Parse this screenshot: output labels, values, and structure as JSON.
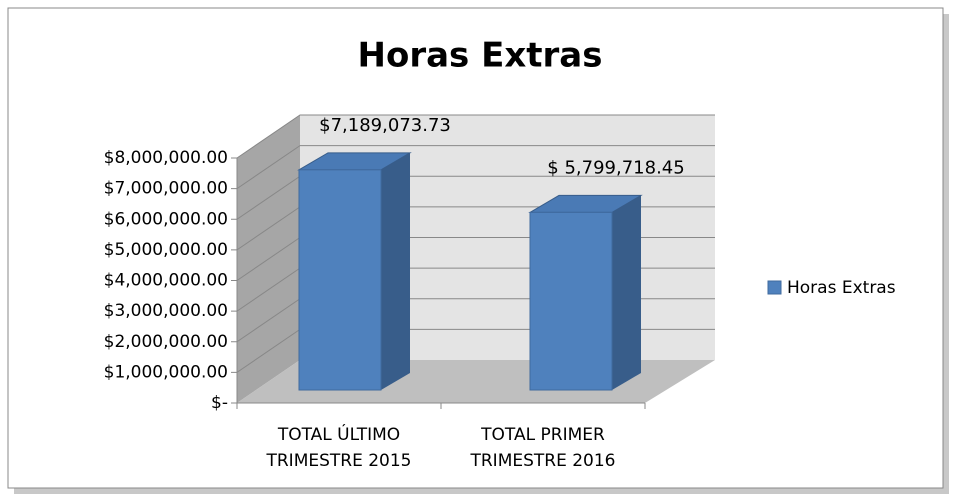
{
  "chart_data": {
    "type": "bar3d",
    "title": "Horas Extras",
    "categories": [
      "TOTAL ÚLTIMO TRIMESTRE 2015",
      "TOTAL PRIMER TRIMESTRE 2016"
    ],
    "series": [
      {
        "name": "Horas Extras",
        "color": "#4f81bd",
        "values": [
          7189073.73,
          5799718.45
        ],
        "value_labels": [
          "$7,189,073.73",
          "$ 5,799,718.45"
        ]
      }
    ],
    "ylim": [
      0,
      8000000
    ],
    "yticks": [
      {
        "value": 0,
        "label": "$-"
      },
      {
        "value": 1000000,
        "label": "$1,000,000.00"
      },
      {
        "value": 2000000,
        "label": "$2,000,000.00"
      },
      {
        "value": 3000000,
        "label": "$3,000,000.00"
      },
      {
        "value": 4000000,
        "label": "$4,000,000.00"
      },
      {
        "value": 5000000,
        "label": "$5,000,000.00"
      },
      {
        "value": 6000000,
        "label": "$6,000,000.00"
      },
      {
        "value": 7000000,
        "label": "$7,000,000.00"
      },
      {
        "value": 8000000,
        "label": "$8,000,000.00"
      }
    ],
    "grid": true,
    "legend": "right"
  }
}
